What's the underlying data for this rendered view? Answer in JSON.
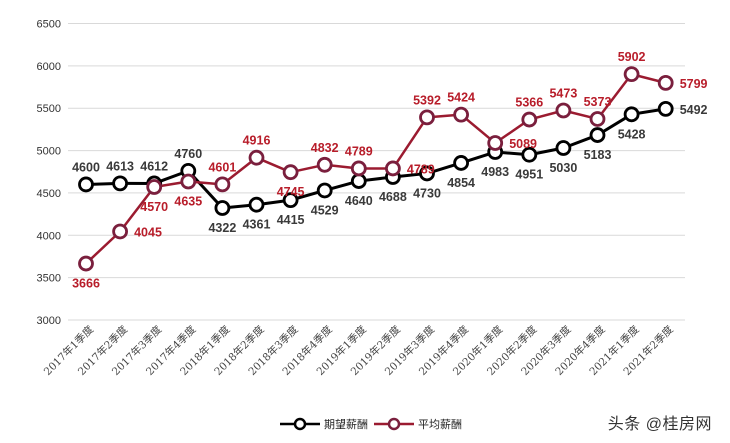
{
  "chart_data": {
    "type": "line",
    "title": "",
    "xlabel": "",
    "ylabel": "",
    "ylim": [
      3000,
      6500
    ],
    "yticks": [
      3000,
      3500,
      4000,
      4500,
      5000,
      5500,
      6000,
      6500
    ],
    "grid": true,
    "legend_position": "bottom",
    "categories": [
      "2017年1季度",
      "2017年2季度",
      "2017年3季度",
      "2017年4季度",
      "2018年1季度",
      "2018年2季度",
      "2018年3季度",
      "2018年4季度",
      "2019年1季度",
      "2019年2季度",
      "2019年3季度",
      "2019年4季度",
      "2020年1季度",
      "2020年2季度",
      "2020年3季度",
      "2020年4季度",
      "2021年1季度",
      "2021年2季度"
    ],
    "series": [
      {
        "name": "期望薪酬",
        "color": "#000000",
        "label_color": "#3a3a3a",
        "values": [
          4600,
          4613,
          4612,
          4760,
          4322,
          4361,
          4415,
          4529,
          4640,
          4688,
          4730,
          4854,
          4983,
          4951,
          5030,
          5183,
          5428,
          5492
        ],
        "label_pos": [
          "above",
          "above",
          "above",
          "above",
          "below",
          "below",
          "below",
          "below",
          "below",
          "below",
          "below",
          "below",
          "below",
          "below",
          "below",
          "below",
          "below",
          "right"
        ]
      },
      {
        "name": "平均薪酬",
        "color": "#9b1b30",
        "label_color": "#b81d2a",
        "values": [
          3666,
          4045,
          4570,
          4635,
          4601,
          4916,
          4745,
          4832,
          4789,
          4789,
          5392,
          5424,
          5089,
          5366,
          5473,
          5373,
          5902,
          5799
        ],
        "label_pos": [
          "below",
          "right",
          "below",
          "below",
          "above",
          "above",
          "below",
          "above",
          "above",
          "right",
          "above",
          "above",
          "right",
          "above",
          "above",
          "above",
          "above",
          "right"
        ]
      }
    ]
  },
  "legend": {
    "items": [
      {
        "label": "期望薪酬",
        "color": "#000000"
      },
      {
        "label": "平均薪酬",
        "color": "#9b1b30"
      }
    ]
  },
  "watermark": "头条 @桂房网"
}
